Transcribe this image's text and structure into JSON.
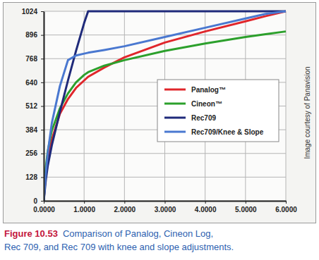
{
  "chart_data": {
    "type": "line",
    "caption_label": "Figure 10.53",
    "caption": [
      "Comparison of Panalog, Cineon Log,",
      "Rec 709, and Rec 709 with knee and slope adjustments."
    ],
    "annotations": [
      "Image courtesy of Panavision"
    ],
    "x": [
      0,
      0.05,
      0.1,
      0.2,
      0.4,
      0.6,
      0.8,
      1.0,
      1.1,
      1.5,
      2,
      3,
      4,
      5,
      5.5,
      6
    ],
    "xlim": [
      0,
      6
    ],
    "ylim": [
      0,
      1024
    ],
    "xticks": [
      {
        "value": 0,
        "label": "0.0000"
      },
      {
        "value": 1,
        "label": "1.0000"
      },
      {
        "value": 2,
        "label": "2.0000"
      },
      {
        "value": 3,
        "label": "3.0000"
      },
      {
        "value": 4,
        "label": "4.0000"
      },
      {
        "value": 5,
        "label": "5.0000"
      },
      {
        "value": 6,
        "label": "6.0000"
      }
    ],
    "yticks": [
      0,
      128,
      256,
      384,
      512,
      640,
      768,
      896,
      1024
    ],
    "grid": true,
    "legend": "right",
    "series": [
      {
        "name": "Panalog™",
        "color": "#e0262b",
        "values": [
          0,
          150,
          230,
          330,
          470,
          550,
          610,
          650,
          670,
          720,
          775,
          855,
          915,
          970,
          998,
          1024
        ]
      },
      {
        "name": "Cineon™",
        "color": "#2ca02c",
        "values": [
          0,
          180,
          270,
          380,
          500,
          580,
          640,
          680,
          695,
          730,
          760,
          810,
          850,
          885,
          900,
          915
        ]
      },
      {
        "name": "Rec709",
        "color": "#1f2a7a",
        "values": [
          0,
          110,
          190,
          300,
          480,
          650,
          810,
          960,
          1024,
          1024,
          1024,
          1024,
          1024,
          1024,
          1024,
          1024
        ]
      },
      {
        "name": "Rec709/Knee & Slope",
        "color": "#4a78d0",
        "values": [
          0,
          150,
          260,
          420,
          620,
          760,
          785,
          795,
          800,
          815,
          835,
          885,
          935,
          985,
          1010,
          1024
        ]
      }
    ]
  }
}
